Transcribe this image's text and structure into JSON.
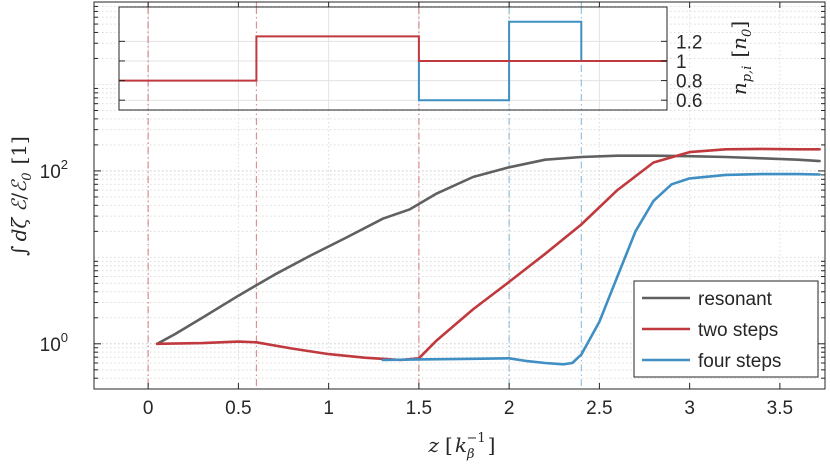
{
  "chart_data": [
    {
      "type": "line",
      "title": "",
      "xlabel": "z [k_β^{-1}]",
      "ylabel": "∫ dζ ℰ/ℰ_0 [1]",
      "yscale": "log",
      "xlim": [
        -0.3,
        3.75
      ],
      "ylim": [
        0.3,
        9000
      ],
      "grid": true,
      "x_ticks": [
        "0",
        "0.5",
        "1",
        "1.5",
        "2",
        "2.5",
        "3",
        "3.5"
      ],
      "y_ticks": [
        {
          "value": 1,
          "base": "10",
          "exp": "0"
        },
        {
          "value": 100,
          "base": "10",
          "exp": "2"
        }
      ],
      "legend_position": "bottom-right",
      "series": [
        {
          "name": "resonant",
          "color": "#606060",
          "x": [
            0.05,
            0.15,
            0.3,
            0.5,
            0.7,
            0.9,
            1.1,
            1.3,
            1.45,
            1.6,
            1.8,
            2.0,
            2.2,
            2.4,
            2.6,
            2.8,
            3.0,
            3.2,
            3.4,
            3.6,
            3.72
          ],
          "y": [
            1.0,
            1.3,
            2.0,
            3.6,
            6.3,
            10.5,
            17.0,
            28.0,
            36.0,
            55.0,
            85.0,
            110.0,
            135.0,
            145.0,
            150.0,
            150.0,
            148.0,
            145.0,
            140.0,
            135.0,
            130.0
          ]
        },
        {
          "name": "two steps",
          "color": "#c0393e",
          "x": [
            0.05,
            0.3,
            0.5,
            0.6,
            0.8,
            1.0,
            1.2,
            1.4,
            1.5,
            1.6,
            1.8,
            2.0,
            2.2,
            2.4,
            2.6,
            2.8,
            3.0,
            3.2,
            3.4,
            3.6,
            3.72
          ],
          "y": [
            1.0,
            1.02,
            1.06,
            1.04,
            0.88,
            0.76,
            0.69,
            0.65,
            0.68,
            1.1,
            2.5,
            5.2,
            11.0,
            24.0,
            60.0,
            125.0,
            165.0,
            178.0,
            180.0,
            178.0,
            178.0
          ]
        },
        {
          "name": "four steps",
          "color": "#3f8fc4",
          "x": [
            1.3,
            1.5,
            1.8,
            2.0,
            2.1,
            2.2,
            2.3,
            2.35,
            2.4,
            2.5,
            2.6,
            2.7,
            2.8,
            2.9,
            3.0,
            3.2,
            3.4,
            3.6,
            3.72
          ],
          "y": [
            0.65,
            0.66,
            0.67,
            0.68,
            0.63,
            0.6,
            0.58,
            0.6,
            0.75,
            1.8,
            6.0,
            20.0,
            45.0,
            70.0,
            82.0,
            90.0,
            92.0,
            92.0,
            91.0
          ]
        }
      ],
      "vertical_markers": [
        {
          "x": 0.0,
          "color": "#c0393e"
        },
        {
          "x": 0.6,
          "color": "#c0393e"
        },
        {
          "x": 1.5,
          "color": "#c0393e"
        },
        {
          "x": 2.0,
          "color": "#3f8fc4"
        },
        {
          "x": 2.4,
          "color": "#3f8fc4"
        }
      ]
    },
    {
      "type": "line",
      "title": "",
      "ylabel": "n_{p,i} [n_0]",
      "xlim": [
        -0.3,
        3.0
      ],
      "ylim": [
        0.5,
        1.55
      ],
      "y_ticks": [
        "0.6",
        "0.8",
        "1",
        "1.2"
      ],
      "series": [
        {
          "name": "four steps",
          "color": "#3f8fc4",
          "x": [
            1.5,
            1.5,
            2.0,
            2.0,
            2.4,
            2.4,
            3.0
          ],
          "y": [
            1.0,
            0.6,
            0.6,
            1.4,
            1.4,
            1.0,
            1.0
          ]
        },
        {
          "name": "two steps",
          "color": "#c0393e",
          "x": [
            -0.3,
            0.6,
            0.6,
            1.5,
            1.5,
            3.0
          ],
          "y": [
            0.8,
            0.8,
            1.25,
            1.25,
            1.0,
            1.0
          ]
        }
      ]
    }
  ]
}
